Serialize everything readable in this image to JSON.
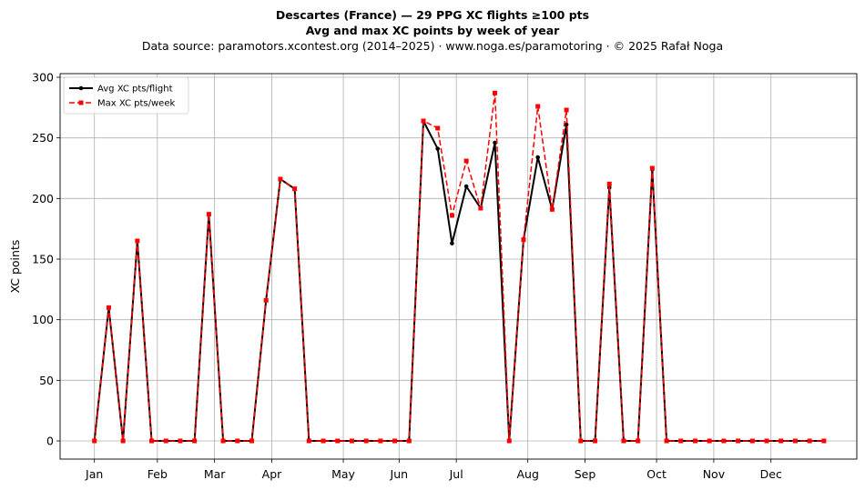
{
  "header": {
    "title": "Descartes (France)  —  29 PPG XC flights ≥100 pts",
    "subtitle": "Avg and max XC points by week of year",
    "source": "Data source: paramotors.xcontest.org (2014–2025)  ·  www.noga.es/paramotoring  ·  © 2025 Rafał Noga"
  },
  "chart_data": {
    "type": "line",
    "title": "Descartes (France)  —  29 PPG XC flights ≥100 pts",
    "subtitle": "Avg and max XC points by week of year",
    "xlabel": "",
    "ylabel": "XC points",
    "x": [
      1,
      2,
      3,
      4,
      5,
      6,
      7,
      8,
      9,
      10,
      11,
      12,
      13,
      14,
      15,
      16,
      17,
      18,
      19,
      20,
      21,
      22,
      23,
      24,
      25,
      26,
      27,
      28,
      29,
      30,
      31,
      32,
      33,
      34,
      35,
      36,
      37,
      38,
      39,
      40,
      41,
      42,
      43,
      44,
      45,
      46,
      47,
      48,
      49,
      50,
      51,
      52
    ],
    "month_ticks": [
      {
        "label": "Jan",
        "x": 1
      },
      {
        "label": "Feb",
        "x": 5.4
      },
      {
        "label": "Mar",
        "x": 9.4
      },
      {
        "label": "Apr",
        "x": 13.4
      },
      {
        "label": "May",
        "x": 18.4
      },
      {
        "label": "Jun",
        "x": 22.3
      },
      {
        "label": "Jul",
        "x": 26.3
      },
      {
        "label": "Aug",
        "x": 31.3
      },
      {
        "label": "Sep",
        "x": 35.3
      },
      {
        "label": "Oct",
        "x": 40.3
      },
      {
        "label": "Nov",
        "x": 44.3
      },
      {
        "label": "Dec",
        "x": 48.3
      }
    ],
    "yticks": [
      0,
      50,
      100,
      150,
      200,
      250,
      300
    ],
    "xlim": [
      -1.4,
      54.3
    ],
    "ylim": [
      -15,
      303
    ],
    "grid": true,
    "legend_position": "top-left",
    "series": [
      {
        "name": "Avg XC pts/flight",
        "color": "#000000",
        "style": "solid-circle",
        "values": [
          0,
          110,
          0,
          165,
          0,
          0,
          0,
          0,
          187,
          0,
          0,
          0,
          116,
          216,
          208,
          0,
          0,
          0,
          0,
          0,
          0,
          0,
          0,
          264,
          241,
          163,
          210,
          192,
          246,
          0,
          166,
          234,
          191,
          261,
          0,
          0,
          209,
          0,
          0,
          224,
          0,
          0,
          0,
          0,
          0,
          0,
          0,
          0,
          0,
          0,
          0,
          0
        ]
      },
      {
        "name": "Max XC pts/week",
        "color": "#ff0000",
        "style": "dashed-square",
        "values": [
          0,
          110,
          0,
          165,
          0,
          0,
          0,
          0,
          187,
          0,
          0,
          0,
          116,
          216,
          208,
          0,
          0,
          0,
          0,
          0,
          0,
          0,
          0,
          264,
          258,
          186,
          231,
          192,
          287,
          0,
          166,
          276,
          191,
          273,
          0,
          0,
          212,
          0,
          0,
          225,
          0,
          0,
          0,
          0,
          0,
          0,
          0,
          0,
          0,
          0,
          0,
          0
        ]
      }
    ]
  }
}
